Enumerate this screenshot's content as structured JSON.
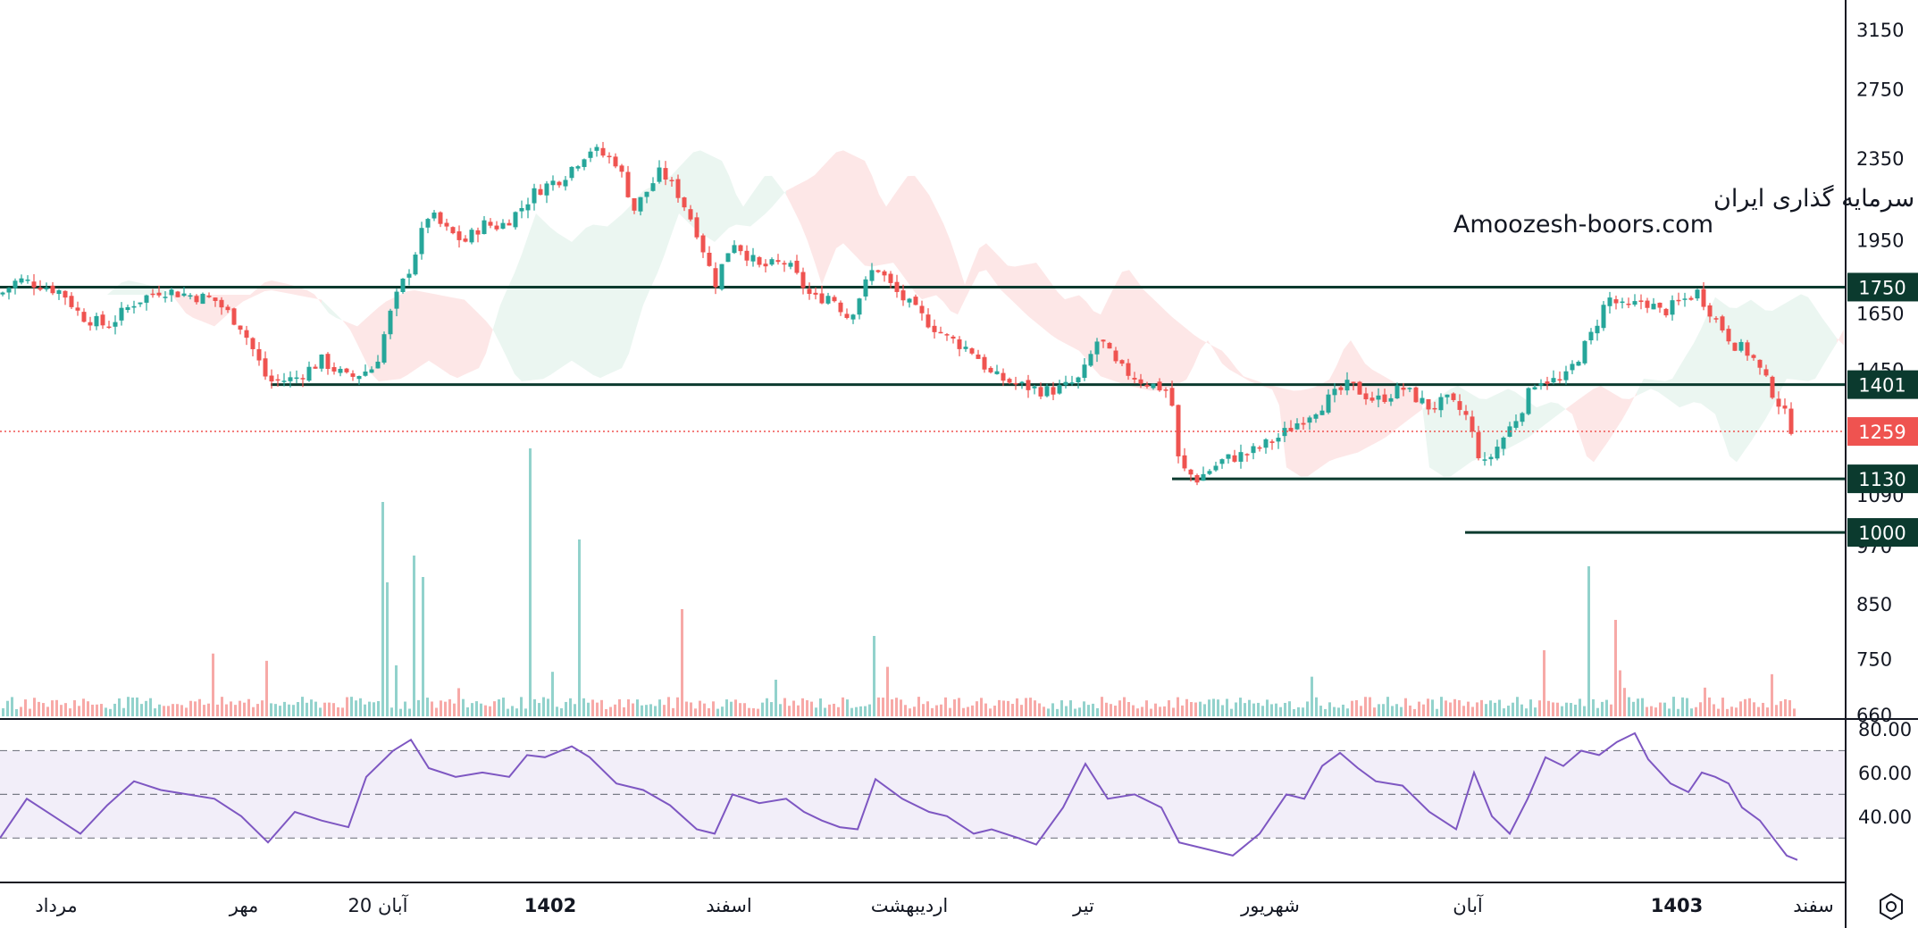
{
  "watermark": {
    "line1": "انجمن خبرگان سرمایه گذاری ایران",
    "line2": "Amoozesh-boors.com"
  },
  "chart_data": {
    "type": "candlestick",
    "price_axis": {
      "ticks": [
        "3150",
        "2750",
        "2350",
        "1950",
        "1650",
        "1450",
        "1090",
        "970",
        "850",
        "750",
        "660"
      ],
      "scale": "log",
      "ylim": [
        660,
        3300
      ]
    },
    "levels": [
      {
        "label": "1750",
        "value": 1750
      },
      {
        "label": "1401",
        "value": 1401
      },
      {
        "label": "1130",
        "value": 1130
      },
      {
        "label": "1000",
        "value": 1000
      }
    ],
    "last_price": {
      "label": "1259",
      "value": 1259
    },
    "colors": {
      "up": "#26a69a",
      "down": "#ef5350",
      "level": "#0b3a2e",
      "rsi": "#7e57c2"
    },
    "x_axis": {
      "labels": [
        "مرداد",
        "مهر",
        "20 آبان",
        "1402",
        "اسفند",
        "اردیبهشت",
        "تیر",
        "شهریور",
        "آبان",
        "1403",
        "سفند"
      ],
      "bold": [
        false,
        false,
        false,
        true,
        false,
        false,
        false,
        false,
        false,
        true,
        false
      ]
    },
    "price_anchors": [
      [
        0,
        1720
      ],
      [
        20,
        1780
      ],
      [
        45,
        1760
      ],
      [
        70,
        1730
      ],
      [
        90,
        1640
      ],
      [
        120,
        1600
      ],
      [
        150,
        1690
      ],
      [
        180,
        1740
      ],
      [
        210,
        1720
      ],
      [
        240,
        1700
      ],
      [
        270,
        1600
      ],
      [
        300,
        1410
      ],
      [
        330,
        1420
      ],
      [
        360,
        1480
      ],
      [
        390,
        1420
      ],
      [
        420,
        1460
      ],
      [
        440,
        1680
      ],
      [
        460,
        1840
      ],
      [
        480,
        2070
      ],
      [
        500,
        1990
      ],
      [
        520,
        1940
      ],
      [
        540,
        2020
      ],
      [
        560,
        2010
      ],
      [
        580,
        2080
      ],
      [
        600,
        2180
      ],
      [
        630,
        2250
      ],
      [
        660,
        2400
      ],
      [
        690,
        2330
      ],
      [
        710,
        2090
      ],
      [
        740,
        2280
      ],
      [
        760,
        2160
      ],
      [
        780,
        1990
      ],
      [
        800,
        1760
      ],
      [
        820,
        1950
      ],
      [
        850,
        1830
      ],
      [
        880,
        1850
      ],
      [
        910,
        1700
      ],
      [
        930,
        1720
      ],
      [
        950,
        1630
      ],
      [
        980,
        1840
      ],
      [
        1000,
        1740
      ],
      [
        1030,
        1640
      ],
      [
        1060,
        1560
      ],
      [
        1090,
        1510
      ],
      [
        1110,
        1430
      ],
      [
        1140,
        1400
      ],
      [
        1170,
        1380
      ],
      [
        1190,
        1390
      ],
      [
        1210,
        1420
      ],
      [
        1230,
        1560
      ],
      [
        1250,
        1460
      ],
      [
        1280,
        1410
      ],
      [
        1310,
        1380
      ],
      [
        1320,
        1160
      ],
      [
        1340,
        1130
      ],
      [
        1370,
        1180
      ],
      [
        1400,
        1200
      ],
      [
        1430,
        1240
      ],
      [
        1460,
        1300
      ],
      [
        1490,
        1360
      ],
      [
        1510,
        1400
      ],
      [
        1540,
        1350
      ],
      [
        1570,
        1390
      ],
      [
        1600,
        1330
      ],
      [
        1620,
        1350
      ],
      [
        1640,
        1310
      ],
      [
        1660,
        1160
      ],
      [
        1680,
        1230
      ],
      [
        1700,
        1310
      ],
      [
        1720,
        1420
      ],
      [
        1750,
        1410
      ],
      [
        1780,
        1560
      ],
      [
        1800,
        1710
      ],
      [
        1820,
        1660
      ],
      [
        1840,
        1700
      ],
      [
        1860,
        1650
      ],
      [
        1880,
        1690
      ],
      [
        1900,
        1730
      ],
      [
        1920,
        1630
      ],
      [
        1940,
        1540
      ],
      [
        1960,
        1500
      ],
      [
        1975,
        1420
      ],
      [
        1990,
        1350
      ],
      [
        2005,
        1270
      ],
      [
        2012,
        1259
      ]
    ],
    "volume_spikes": [
      [
        425,
        0.4
      ],
      [
        432,
        0.25
      ],
      [
        463,
        0.3
      ],
      [
        474,
        0.26
      ],
      [
        594,
        0.5
      ],
      [
        645,
        0.33
      ],
      [
        763,
        0.2
      ],
      [
        978,
        0.15
      ],
      [
        1775,
        0.28
      ],
      [
        1808,
        0.18
      ],
      [
        1983,
        0.16
      ]
    ],
    "rsi": {
      "levels": [
        70,
        50,
        30
      ],
      "ticks": [
        "80.00",
        "60.00",
        "40.00"
      ],
      "ylim": [
        15,
        80
      ],
      "anchors": [
        [
          0,
          30
        ],
        [
          30,
          48
        ],
        [
          60,
          40
        ],
        [
          90,
          32
        ],
        [
          120,
          45
        ],
        [
          150,
          56
        ],
        [
          180,
          52
        ],
        [
          210,
          50
        ],
        [
          240,
          48
        ],
        [
          270,
          40
        ],
        [
          300,
          28
        ],
        [
          330,
          42
        ],
        [
          360,
          38
        ],
        [
          390,
          35
        ],
        [
          410,
          58
        ],
        [
          440,
          70
        ],
        [
          460,
          75
        ],
        [
          480,
          62
        ],
        [
          510,
          58
        ],
        [
          540,
          60
        ],
        [
          570,
          58
        ],
        [
          590,
          68
        ],
        [
          610,
          67
        ],
        [
          640,
          72
        ],
        [
          660,
          67
        ],
        [
          690,
          55
        ],
        [
          720,
          52
        ],
        [
          750,
          45
        ],
        [
          780,
          34
        ],
        [
          800,
          32
        ],
        [
          820,
          50
        ],
        [
          850,
          46
        ],
        [
          880,
          48
        ],
        [
          900,
          42
        ],
        [
          920,
          38
        ],
        [
          940,
          35
        ],
        [
          960,
          34
        ],
        [
          980,
          57
        ],
        [
          1010,
          48
        ],
        [
          1040,
          42
        ],
        [
          1060,
          40
        ],
        [
          1090,
          32
        ],
        [
          1110,
          34
        ],
        [
          1140,
          30
        ],
        [
          1160,
          27
        ],
        [
          1190,
          44
        ],
        [
          1215,
          64
        ],
        [
          1240,
          48
        ],
        [
          1270,
          50
        ],
        [
          1300,
          44
        ],
        [
          1320,
          28
        ],
        [
          1350,
          25
        ],
        [
          1380,
          22
        ],
        [
          1410,
          32
        ],
        [
          1440,
          50
        ],
        [
          1460,
          48
        ],
        [
          1480,
          63
        ],
        [
          1500,
          69
        ],
        [
          1520,
          62
        ],
        [
          1540,
          56
        ],
        [
          1570,
          54
        ],
        [
          1600,
          42
        ],
        [
          1630,
          34
        ],
        [
          1650,
          60
        ],
        [
          1670,
          40
        ],
        [
          1690,
          32
        ],
        [
          1710,
          48
        ],
        [
          1730,
          67
        ],
        [
          1750,
          63
        ],
        [
          1770,
          70
        ],
        [
          1790,
          68
        ],
        [
          1810,
          74
        ],
        [
          1830,
          78
        ],
        [
          1845,
          66
        ],
        [
          1870,
          55
        ],
        [
          1890,
          51
        ],
        [
          1905,
          60
        ],
        [
          1920,
          58
        ],
        [
          1935,
          55
        ],
        [
          1950,
          44
        ],
        [
          1970,
          38
        ],
        [
          1985,
          30
        ],
        [
          2000,
          22
        ],
        [
          2012,
          20
        ]
      ]
    }
  }
}
